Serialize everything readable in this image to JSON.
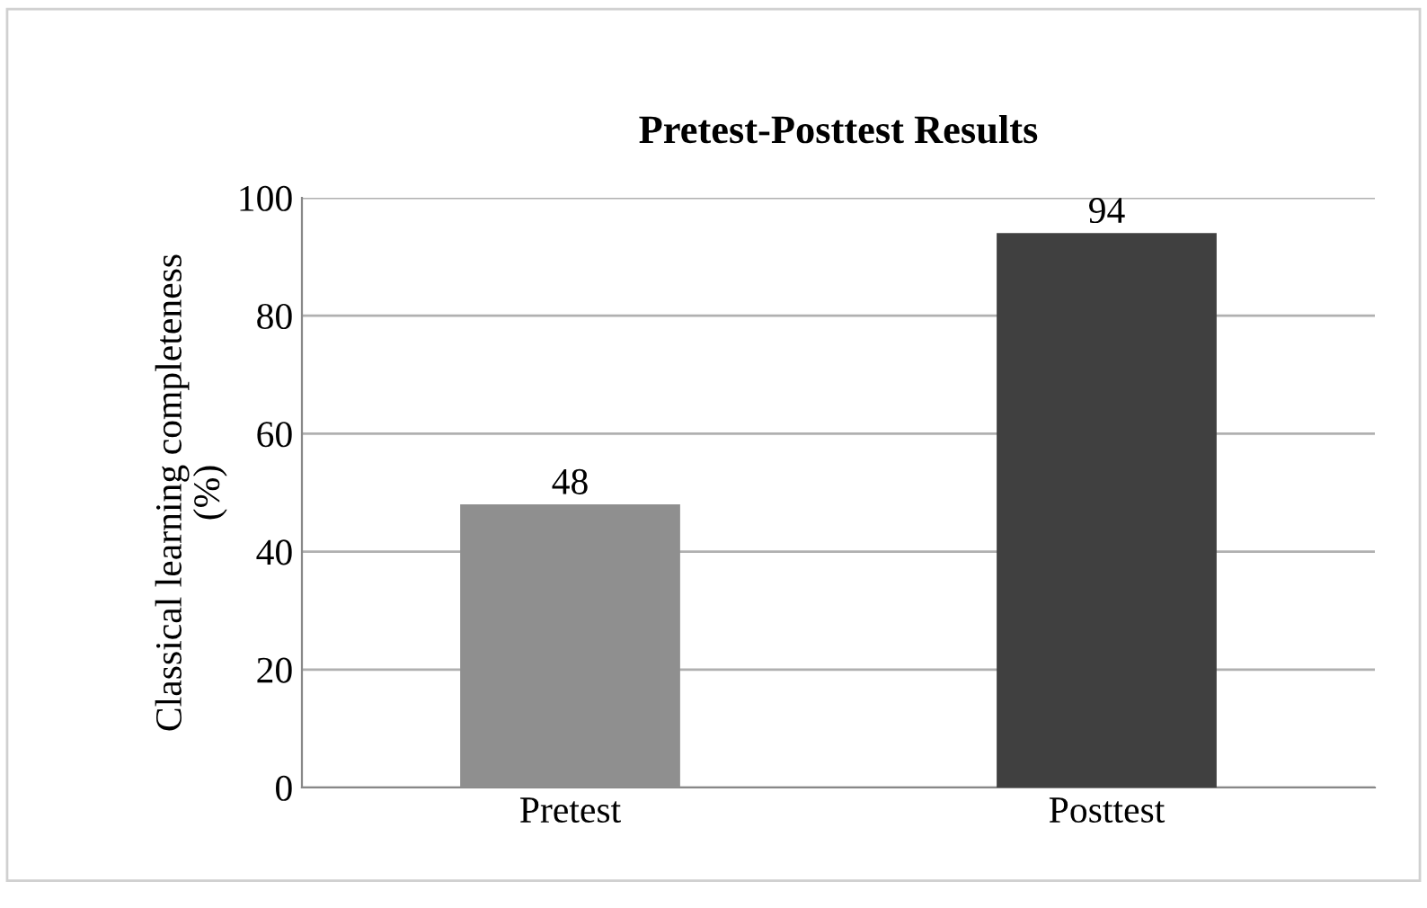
{
  "chart_data": {
    "type": "bar",
    "title": "Pretest-Posttest Results",
    "ylabel": "Classical learning completeness\n(%)",
    "categories": [
      "Pretest",
      "Posttest"
    ],
    "values": [
      48,
      94
    ],
    "colors": [
      "#8f8f8f",
      "#404040"
    ],
    "ylim": [
      0,
      100
    ],
    "yticks": [
      0,
      20,
      40,
      60,
      80,
      100
    ],
    "grid": "y",
    "data_labels": true
  }
}
